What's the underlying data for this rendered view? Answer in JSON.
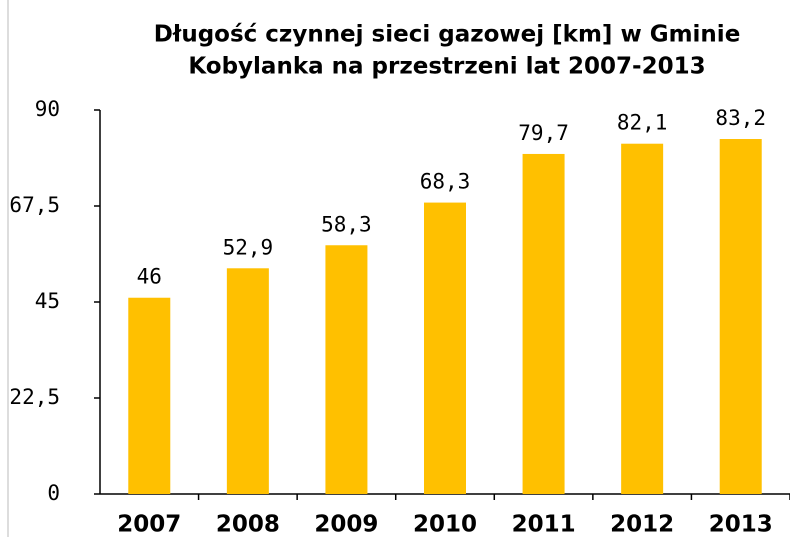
{
  "chart_data": {
    "type": "bar",
    "title": [
      "Długość czynnej sieci gazowej [km] w Gminie",
      "Kobylanka na przestrzeni lat 2007-2013"
    ],
    "categories": [
      "2007",
      "2008",
      "2009",
      "2010",
      "2011",
      "2012",
      "2013"
    ],
    "values": [
      46,
      52.9,
      58.3,
      68.3,
      79.7,
      82.1,
      83.2
    ],
    "value_labels": [
      "46",
      "52,9",
      "58,3",
      "68,3",
      "79,7",
      "82,1",
      "83,2"
    ],
    "color": "#ffc000",
    "ylim": [
      0,
      90
    ],
    "yticks": [
      0,
      {
        "value": 22.5,
        "label": "22,5"
      },
      45,
      {
        "value": 67.5,
        "label": "67,5"
      },
      90
    ],
    "grid": false
  }
}
